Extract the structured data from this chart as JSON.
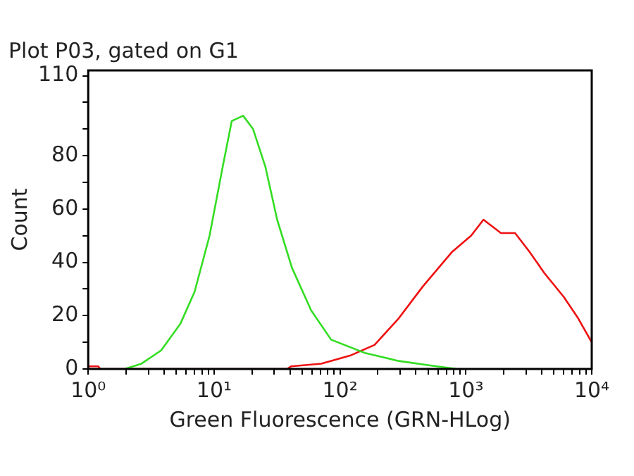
{
  "chart_data": {
    "type": "line",
    "title": "Plot P03, gated on G1",
    "xlabel": "Green Fluorescence (GRN-HLog)",
    "ylabel": "Count",
    "log": "x",
    "grid": false,
    "legend": false,
    "xlim": [
      1,
      10000
    ],
    "ylim": [
      0,
      112
    ],
    "xticks": [
      {
        "value": 1,
        "label": "10⁰"
      },
      {
        "value": 2,
        "label": null
      },
      {
        "value": 3,
        "label": null
      },
      {
        "value": 4,
        "label": null
      },
      {
        "value": 5,
        "label": null
      },
      {
        "value": 6,
        "label": null
      },
      {
        "value": 7,
        "label": null
      },
      {
        "value": 8,
        "label": null
      },
      {
        "value": 9,
        "label": null
      },
      {
        "value": 10,
        "label": "10¹"
      },
      {
        "value": 20,
        "label": null
      },
      {
        "value": 30,
        "label": null
      },
      {
        "value": 40,
        "label": null
      },
      {
        "value": 50,
        "label": null
      },
      {
        "value": 60,
        "label": null
      },
      {
        "value": 70,
        "label": null
      },
      {
        "value": 80,
        "label": null
      },
      {
        "value": 90,
        "label": null
      },
      {
        "value": 100,
        "label": "10²"
      },
      {
        "value": 200,
        "label": null
      },
      {
        "value": 300,
        "label": null
      },
      {
        "value": 400,
        "label": null
      },
      {
        "value": 500,
        "label": null
      },
      {
        "value": 600,
        "label": null
      },
      {
        "value": 700,
        "label": null
      },
      {
        "value": 800,
        "label": null
      },
      {
        "value": 900,
        "label": null
      },
      {
        "value": 1000,
        "label": "10³"
      },
      {
        "value": 2000,
        "label": null
      },
      {
        "value": 3000,
        "label": null
      },
      {
        "value": 4000,
        "label": null
      },
      {
        "value": 5000,
        "label": null
      },
      {
        "value": 6000,
        "label": null
      },
      {
        "value": 7000,
        "label": null
      },
      {
        "value": 8000,
        "label": null
      },
      {
        "value": 9000,
        "label": null
      },
      {
        "value": 10000,
        "label": "10⁴"
      }
    ],
    "yticks": [
      0,
      {
        "value": 10,
        "label": null
      },
      20,
      {
        "value": 30,
        "label": null
      },
      40,
      {
        "value": 50,
        "label": null
      },
      60,
      {
        "value": 70,
        "label": null
      },
      80,
      {
        "value": 90,
        "label": null
      },
      {
        "value": 100,
        "label": null
      },
      110
    ],
    "series": [
      {
        "color": "#33dd22",
        "x": [
          1.95,
          2.65,
          3.8,
          5.4,
          7,
          9.2,
          11.5,
          13.8,
          17,
          20.4,
          25.5,
          31.7,
          41.5,
          59,
          85,
          158,
          293,
          546,
          850
        ],
        "values": [
          0,
          2,
          7,
          17,
          29,
          50,
          74,
          93,
          95,
          90,
          76,
          56,
          38,
          22,
          11,
          6,
          3,
          1.2,
          0
        ]
      },
      {
        "color": "#ee1111",
        "x": [
          1,
          1.2,
          1.25,
          38,
          41,
          71,
          120,
          188,
          293,
          456,
          780,
          1100,
          1380,
          1900,
          2460,
          3200,
          4200,
          6000,
          7800,
          10000
        ],
        "values": [
          1,
          1,
          0,
          0,
          1,
          2,
          5,
          9,
          19,
          31,
          44,
          50,
          56,
          51,
          51,
          44,
          36,
          27,
          19,
          10
        ]
      }
    ]
  }
}
